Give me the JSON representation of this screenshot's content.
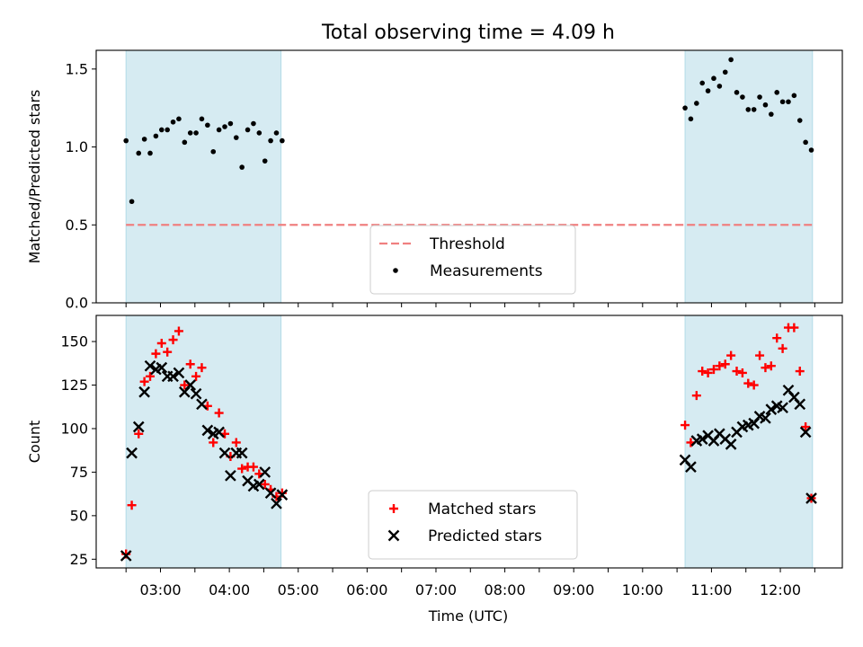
{
  "chart_data": {
    "title": "Total observing time = 4.09 h",
    "xlabel": "Time (UTC)",
    "x_range": [
      "02:04",
      "12:54"
    ],
    "x_ticks": [
      "03:00",
      "04:00",
      "05:00",
      "06:00",
      "07:00",
      "08:00",
      "09:00",
      "10:00",
      "11:00",
      "12:00"
    ],
    "shaded_intervals": [
      [
        "02:30",
        "04:45"
      ],
      [
        "10:37",
        "12:28"
      ]
    ],
    "shade_color": "#add8e6",
    "panels": [
      {
        "type": "scatter",
        "ylabel": "Matched/Predicted stars",
        "ylim": [
          0,
          1.62
        ],
        "yticks": [
          0.0,
          0.5,
          1.0,
          1.5
        ],
        "ytick_labels": [
          "0.0",
          "0.5",
          "1.0",
          "1.5"
        ],
        "legend_position": "bottom-center",
        "threshold": {
          "name": "Threshold",
          "value": 0.5,
          "x_range": [
            "02:30",
            "12:28"
          ],
          "color": "#f08080"
        },
        "series": [
          {
            "name": "Measurements",
            "marker": "dot",
            "color": "#000000",
            "points": [
              [
                "02:30",
                1.04
              ],
              [
                "02:35",
                0.65
              ],
              [
                "02:41",
                0.96
              ],
              [
                "02:46",
                1.05
              ],
              [
                "02:51",
                0.96
              ],
              [
                "02:56",
                1.07
              ],
              [
                "03:01",
                1.11
              ],
              [
                "03:06",
                1.11
              ],
              [
                "03:11",
                1.16
              ],
              [
                "03:16",
                1.18
              ],
              [
                "03:21",
                1.03
              ],
              [
                "03:26",
                1.09
              ],
              [
                "03:31",
                1.09
              ],
              [
                "03:36",
                1.18
              ],
              [
                "03:41",
                1.14
              ],
              [
                "03:46",
                0.97
              ],
              [
                "03:51",
                1.11
              ],
              [
                "03:56",
                1.13
              ],
              [
                "04:01",
                1.15
              ],
              [
                "04:06",
                1.06
              ],
              [
                "04:11",
                0.87
              ],
              [
                "04:16",
                1.11
              ],
              [
                "04:21",
                1.15
              ],
              [
                "04:26",
                1.09
              ],
              [
                "04:31",
                0.91
              ],
              [
                "04:36",
                1.04
              ],
              [
                "04:41",
                1.09
              ],
              [
                "04:46",
                1.04
              ],
              [
                "10:37",
                1.25
              ],
              [
                "10:42",
                1.18
              ],
              [
                "10:47",
                1.28
              ],
              [
                "10:52",
                1.41
              ],
              [
                "10:57",
                1.36
              ],
              [
                "11:02",
                1.44
              ],
              [
                "11:07",
                1.39
              ],
              [
                "11:12",
                1.48
              ],
              [
                "11:17",
                1.56
              ],
              [
                "11:22",
                1.35
              ],
              [
                "11:27",
                1.32
              ],
              [
                "11:32",
                1.24
              ],
              [
                "11:37",
                1.24
              ],
              [
                "11:42",
                1.32
              ],
              [
                "11:47",
                1.27
              ],
              [
                "11:52",
                1.21
              ],
              [
                "11:57",
                1.35
              ],
              [
                "12:02",
                1.29
              ],
              [
                "12:07",
                1.29
              ],
              [
                "12:12",
                1.33
              ],
              [
                "12:17",
                1.17
              ],
              [
                "12:22",
                1.03
              ],
              [
                "12:27",
                0.98
              ]
            ]
          }
        ]
      },
      {
        "type": "scatter",
        "ylabel": "Count",
        "ylim": [
          20,
          165
        ],
        "yticks": [
          25,
          50,
          75,
          100,
          125,
          150
        ],
        "ytick_labels": [
          "25",
          "50",
          "75",
          "100",
          "125",
          "150"
        ],
        "legend_position": "bottom-center",
        "series": [
          {
            "name": "Matched stars",
            "marker": "plus",
            "color": "#ff0000",
            "points": [
              [
                "02:30",
                28
              ],
              [
                "02:35",
                56
              ],
              [
                "02:41",
                97
              ],
              [
                "02:46",
                127
              ],
              [
                "02:51",
                130
              ],
              [
                "02:56",
                143
              ],
              [
                "03:01",
                149
              ],
              [
                "03:06",
                144
              ],
              [
                "03:11",
                151
              ],
              [
                "03:16",
                156
              ],
              [
                "03:21",
                125
              ],
              [
                "03:26",
                137
              ],
              [
                "03:31",
                130
              ],
              [
                "03:36",
                135
              ],
              [
                "03:41",
                113
              ],
              [
                "03:46",
                92
              ],
              [
                "03:51",
                109
              ],
              [
                "03:56",
                97
              ],
              [
                "04:01",
                84
              ],
              [
                "04:06",
                92
              ],
              [
                "04:11",
                77
              ],
              [
                "04:16",
                78
              ],
              [
                "04:21",
                78
              ],
              [
                "04:26",
                74
              ],
              [
                "04:31",
                68
              ],
              [
                "04:36",
                65
              ],
              [
                "04:41",
                61
              ],
              [
                "04:46",
                63
              ],
              [
                "10:37",
                102
              ],
              [
                "10:42",
                92
              ],
              [
                "10:47",
                119
              ],
              [
                "10:52",
                133
              ],
              [
                "10:57",
                132
              ],
              [
                "11:02",
                134
              ],
              [
                "11:07",
                136
              ],
              [
                "11:12",
                137
              ],
              [
                "11:17",
                142
              ],
              [
                "11:22",
                133
              ],
              [
                "11:27",
                132
              ],
              [
                "11:32",
                126
              ],
              [
                "11:37",
                125
              ],
              [
                "11:42",
                142
              ],
              [
                "11:47",
                135
              ],
              [
                "11:52",
                136
              ],
              [
                "11:57",
                152
              ],
              [
                "12:02",
                146
              ],
              [
                "12:07",
                158
              ],
              [
                "12:12",
                158
              ],
              [
                "12:17",
                133
              ],
              [
                "12:22",
                101
              ],
              [
                "12:27",
                60
              ]
            ]
          },
          {
            "name": "Predicted stars",
            "marker": "x",
            "color": "#000000",
            "points": [
              [
                "02:30",
                27
              ],
              [
                "02:35",
                86
              ],
              [
                "02:41",
                101
              ],
              [
                "02:46",
                121
              ],
              [
                "02:51",
                136
              ],
              [
                "02:56",
                134
              ],
              [
                "03:01",
                135
              ],
              [
                "03:06",
                130
              ],
              [
                "03:11",
                130
              ],
              [
                "03:16",
                132
              ],
              [
                "03:21",
                121
              ],
              [
                "03:26",
                125
              ],
              [
                "03:31",
                120
              ],
              [
                "03:36",
                114
              ],
              [
                "03:41",
                99
              ],
              [
                "03:46",
                97
              ],
              [
                "03:51",
                98
              ],
              [
                "03:56",
                86
              ],
              [
                "04:01",
                73
              ],
              [
                "04:06",
                86
              ],
              [
                "04:11",
                86
              ],
              [
                "04:16",
                70
              ],
              [
                "04:21",
                67
              ],
              [
                "04:26",
                68
              ],
              [
                "04:31",
                75
              ],
              [
                "04:36",
                63
              ],
              [
                "04:41",
                57
              ],
              [
                "04:46",
                62
              ],
              [
                "10:37",
                82
              ],
              [
                "10:42",
                78
              ],
              [
                "10:47",
                93
              ],
              [
                "10:52",
                94
              ],
              [
                "10:57",
                96
              ],
              [
                "11:02",
                93
              ],
              [
                "11:07",
                97
              ],
              [
                "11:12",
                94
              ],
              [
                "11:17",
                91
              ],
              [
                "11:22",
                98
              ],
              [
                "11:27",
                101
              ],
              [
                "11:32",
                102
              ],
              [
                "11:37",
                103
              ],
              [
                "11:42",
                107
              ],
              [
                "11:47",
                106
              ],
              [
                "11:52",
                111
              ],
              [
                "11:57",
                113
              ],
              [
                "12:02",
                112
              ],
              [
                "12:07",
                122
              ],
              [
                "12:12",
                118
              ],
              [
                "12:17",
                114
              ],
              [
                "12:22",
                98
              ],
              [
                "12:27",
                60
              ]
            ]
          }
        ]
      }
    ]
  }
}
